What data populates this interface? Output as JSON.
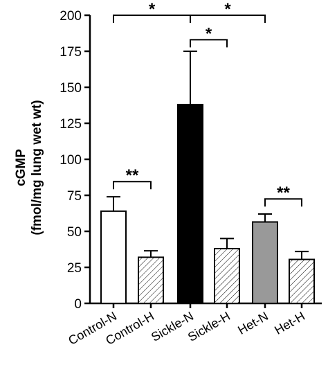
{
  "chart_data": {
    "type": "bar",
    "y_label": [
      "cGMP",
      "(fmol/mg lung wet wt)"
    ],
    "categories": [
      "Control-N",
      "Control-H",
      "Sickle-N",
      "Sickle-H",
      "Het-N",
      "Het-H"
    ],
    "values": [
      64,
      32,
      138,
      38,
      56.5,
      30.5
    ],
    "errors": [
      10,
      4.5,
      37,
      7,
      5.5,
      5.5
    ],
    "colors": [
      "#ffffff",
      "#ffffff",
      "#000000",
      "#ffffff",
      "#999999",
      "#ffffff"
    ],
    "hatched": [
      false,
      true,
      false,
      true,
      false,
      true
    ],
    "ylim": [
      0,
      200
    ],
    "yticks": [
      0,
      25,
      50,
      75,
      100,
      125,
      150,
      175,
      200
    ],
    "annotations": [
      {
        "label": "*",
        "from": 0,
        "to": 2,
        "y": 200
      },
      {
        "label": "*",
        "from": 2,
        "to": 4,
        "y": 200
      },
      {
        "label": "*",
        "from": 2,
        "to": 3,
        "y": 183
      },
      {
        "label": "**",
        "from": 0,
        "to": 1,
        "y": 84.5
      },
      {
        "label": "**",
        "from": 4,
        "to": 5,
        "y": 72.5
      }
    ]
  }
}
